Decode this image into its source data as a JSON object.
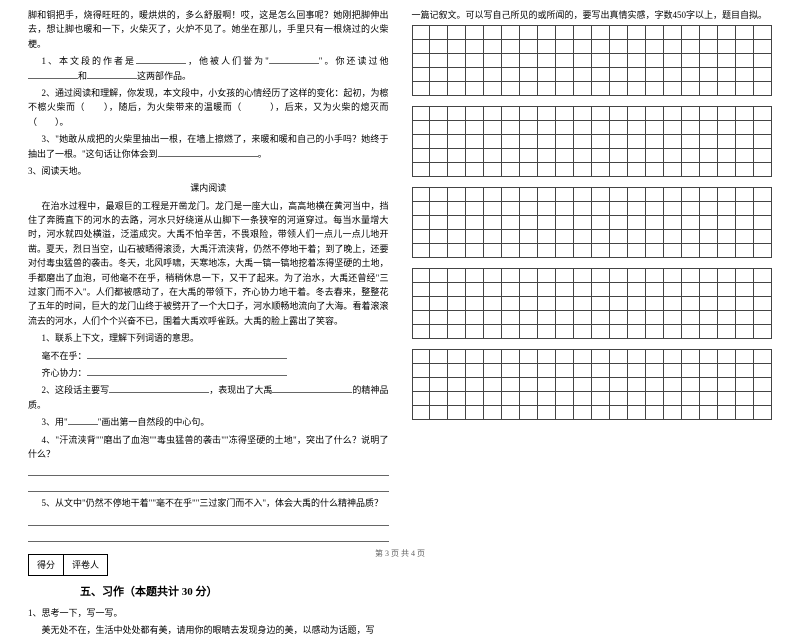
{
  "leftColumn": {
    "intro": "脚和铜把手，烧得旺旺的，暖烘烘的，多么舒服啊！哎，这是怎么回事呢？她刚把脚伸出去，想让脚也暖和一下，火柴灭了，火炉不见了。她坐在那儿，手里只有一根烧过的火柴梗。",
    "q1_pre": "1、本文段的作者是",
    "q1_mid": "，他被人们誉为\"",
    "q1_mid2": "\"。你还读过他",
    "q1_end": "和",
    "q1_tail": "这两部作品。",
    "q2_pre": "2、通过阅读和理解，你发现，本文段中，小女孩的心情经历了这样的变化：起初，为檫不檫火柴而（　　），随后，为火柴带来的温暖而（　　　），后来，又为火柴的熄灭而（　　）。",
    "q3_text": "3、\"她敢从成把的火柴里抽出一根，在墙上擦燃了，来暖和暖和自己的小手吗？她终于抽出了一根。\"这句话让你体会到",
    "q3_title": "3、阅读天地。",
    "reading_title": "课内阅读",
    "reading_body": "在治水过程中，最艰巨的工程是开凿龙门。龙门是一座大山，高高地横在黄河当中，挡住了奔腾直下的河水的去路，河水只好绕道从山脚下一条狭窄的河道穿过。每当水量增大时，河水就四处横溢，泛滥成灾。大禹不怕辛苦，不畏艰险，带领人们一点儿一点儿地开凿。夏天，烈日当空，山石被晒得滚烫，大禹汗流浃背，仍然不停地干着；到了晚上，还要对付毒虫猛兽的袭击。冬天，北风呼啸，天寒地冻，大禹一镐一镐地挖着冻得坚硬的土地，手都磨出了血泡，可他毫不在乎，稍稍休息一下，又干了起来。为了治水，大禹还曾经\"三过家门而不入\"。人们都被感动了，在大禹的带领下，齐心协力地干着。冬去春来，整整花了五年的时间，巨大的龙门山终于被劈开了一个大口子，河水顺畅地流向了大海。看着滚滚流去的河水，人们个个兴奋不已，围着大禹欢呼雀跃。大禹的脸上露出了笑容。",
    "rq1": "1、联系上下文，理解下列词语的意思。",
    "rq1_a": "毫不在乎：",
    "rq1_b": "齐心协力：",
    "rq2_pre": "2、这段话主要写",
    "rq2_mid": "，表现出了大禹",
    "rq2_end": "的精神品质。",
    "rq3_pre": "3、用\"",
    "rq3_end": "\"画出第一自然段的中心句。",
    "rq4": "4、\"汗流浃背\"\"磨出了血泡\"\"毒虫猛兽的袭击\"\"冻得坚硬的土地\"，突出了什么？说明了什么？",
    "rq5": "5、从文中\"仍然不停地干着\"\"毫不在乎\"\"三过家门而不入\"，体会大禹的什么精神品质？",
    "score_labels": [
      "得分",
      "评卷人"
    ],
    "section5": "五、习作（本题共计 30 分）",
    "writing1": "1、思考一下，写一写。",
    "writing_prompt": "美无处不在，生活中处处都有美，请用你的眼睛去发现身边的美，以感动为话题，写"
  },
  "rightColumn": {
    "prompt_cont": "一篇记叙文。可以写自己所见的或所闻的，要写出真情实感，字数450字以上，题目自拟。",
    "grid_rows": 5,
    "grid_cols": 20,
    "grid_blocks": 5
  },
  "footer": "第 3 页 共 4 页"
}
